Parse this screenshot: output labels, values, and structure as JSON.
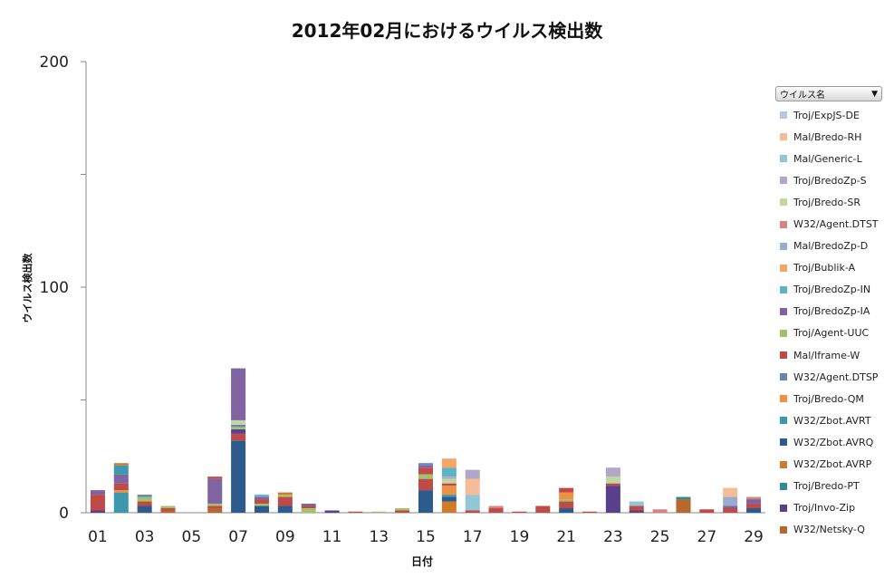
{
  "chart_data": {
    "type": "bar",
    "stacked": true,
    "title": "2012年02月におけるウイルス検出数",
    "xlabel": "日付",
    "ylabel": "ウイルス検出数",
    "ylim": [
      0,
      200
    ],
    "y_ticks": [
      "0",
      "100",
      "200"
    ],
    "x_tick_labels": [
      "01",
      "03",
      "05",
      "07",
      "09",
      "11",
      "13",
      "15",
      "17",
      "19",
      "21",
      "23",
      "25",
      "27",
      "29"
    ],
    "legend_header": "ウイルス名",
    "legend_arrow": "▼",
    "categories": [
      "01",
      "02",
      "03",
      "04",
      "05",
      "06",
      "07",
      "08",
      "09",
      "10",
      "11",
      "12",
      "13",
      "14",
      "15",
      "16",
      "17",
      "18",
      "19",
      "20",
      "21",
      "22",
      "23",
      "24",
      "25",
      "26",
      "27",
      "28",
      "29"
    ],
    "series": [
      {
        "name": "W32/Netsky-Q",
        "color": "#b8682d",
        "values": [
          0,
          0,
          0,
          0,
          0,
          0,
          0,
          0,
          0,
          0,
          0,
          0,
          0,
          0,
          0,
          0,
          0,
          0,
          0,
          0,
          0,
          0,
          0,
          0,
          0,
          6,
          0,
          0,
          0
        ]
      },
      {
        "name": "Troj/Invo-Zip",
        "color": "#5a3f8c",
        "values": [
          1,
          0,
          0,
          0,
          0,
          0,
          0,
          0,
          0,
          0,
          0,
          0,
          0,
          0,
          0,
          0,
          0,
          0,
          0,
          0,
          0,
          0,
          12,
          0,
          0,
          0,
          0,
          0,
          0
        ]
      },
      {
        "name": "Troj/Bredo-PT",
        "color": "#2f8a99",
        "values": [
          0,
          0,
          0,
          0,
          0,
          0,
          0,
          0,
          0,
          0,
          0,
          0,
          0,
          0,
          0,
          0,
          0,
          0,
          0,
          0,
          0,
          0,
          0,
          0,
          0,
          1,
          0,
          0,
          0
        ]
      },
      {
        "name": "W32/Zbot.AVRP",
        "color": "#d07a2c",
        "values": [
          0,
          0,
          0,
          0,
          0,
          0,
          0,
          0,
          0,
          0,
          0,
          0,
          0,
          0,
          0,
          5,
          0,
          0,
          0,
          0,
          0,
          0,
          0,
          0,
          0,
          0,
          0,
          0,
          0
        ]
      },
      {
        "name": "W32/Zbot.AVRQ",
        "color": "#2e5b8e",
        "values": [
          0,
          0,
          3,
          0,
          0,
          0,
          32,
          3,
          3,
          0,
          0,
          0,
          0,
          0,
          10,
          2,
          0,
          0,
          0,
          0,
          2,
          0,
          0,
          0,
          0,
          0,
          0,
          0,
          2
        ]
      },
      {
        "name": "W32/Zbot.AVRT",
        "color": "#3d98ae",
        "values": [
          0,
          9,
          0,
          0,
          0,
          0,
          0,
          0,
          0,
          0,
          0,
          0,
          0,
          0,
          0,
          1,
          0,
          0,
          0,
          0,
          0,
          0,
          0,
          0,
          0,
          0,
          0,
          0,
          0
        ]
      },
      {
        "name": "Troj/Bredo-QM",
        "color": "#ef9144",
        "values": [
          0,
          1,
          0,
          0,
          0,
          0,
          0,
          0,
          0,
          0,
          0,
          0,
          0,
          0,
          0,
          4,
          0,
          0,
          0,
          0,
          0,
          0,
          0,
          0,
          0,
          0,
          0,
          0,
          0
        ]
      },
      {
        "name": "W32/Agent.DTSP",
        "color": "#6b82b8",
        "values": [
          0,
          0,
          0,
          0,
          0,
          0,
          0,
          0,
          0,
          0,
          0,
          0,
          0,
          0,
          0,
          0,
          0,
          0,
          0,
          0,
          0,
          0,
          0,
          0,
          0,
          0,
          0,
          0,
          0
        ]
      },
      {
        "name": "Mal/Iframe-W",
        "color": "#bf4b49",
        "values": [
          0,
          0,
          0,
          0,
          0,
          0,
          0,
          0,
          0,
          0,
          0,
          0,
          0,
          0,
          0,
          0,
          0,
          0,
          0,
          0,
          0,
          0,
          0,
          0,
          0,
          0,
          0,
          0,
          0
        ]
      },
      {
        "name": "Troj/Agent-UUC",
        "color": "#a2c26a",
        "values": [
          0,
          0,
          0,
          0,
          0,
          0,
          0,
          0,
          0,
          0,
          0,
          0,
          0,
          0,
          0,
          0,
          0,
          0,
          0,
          0,
          0,
          0,
          0,
          0,
          0,
          0,
          0,
          0,
          0
        ]
      },
      {
        "name": "Troj/BredoZp-IA",
        "color": "#8064a2",
        "values": [
          0,
          0,
          0,
          0,
          0,
          0,
          0,
          0,
          0,
          0,
          0,
          0,
          0,
          0,
          0,
          0,
          0,
          0,
          0,
          0,
          0,
          0,
          0,
          0,
          0,
          0,
          0,
          0,
          0
        ]
      },
      {
        "name": "Troj/BredoZp-IN",
        "color": "#5fb3c8",
        "values": [
          0,
          0,
          0,
          0,
          0,
          0,
          0,
          0,
          0,
          0,
          0,
          0,
          0,
          0,
          0,
          0,
          0,
          0,
          0,
          0,
          0,
          0,
          0,
          0,
          0,
          0,
          0,
          0,
          0
        ]
      },
      {
        "name": "Troj/Bublik-A",
        "color": "#f5a767",
        "values": [
          0,
          0,
          0,
          0,
          0,
          0,
          0,
          0,
          0,
          0,
          0,
          0,
          0,
          0,
          0,
          0,
          0,
          0,
          0,
          0,
          0,
          0,
          0,
          0,
          0,
          0,
          0,
          0,
          0
        ]
      },
      {
        "name": "Mal/BredoZp-D",
        "color": "#99accd",
        "values": [
          0,
          0,
          0,
          0,
          0,
          0,
          0,
          0,
          0,
          0,
          0,
          0,
          0,
          0,
          0,
          0,
          0,
          0,
          0,
          0,
          0,
          0,
          0,
          0,
          0,
          0,
          0,
          0,
          0
        ]
      },
      {
        "name": "W32/Agent.DTST",
        "color": "#d48583",
        "values": [
          0,
          0,
          0,
          0,
          0,
          0,
          0,
          0,
          0,
          0,
          0,
          0,
          0,
          0,
          0,
          0,
          0,
          0,
          0,
          0,
          0,
          0,
          0,
          0,
          0,
          0,
          0,
          0,
          0
        ]
      },
      {
        "name": "Troj/Bredo-SR",
        "color": "#c1d7a0",
        "values": [
          0,
          0,
          0,
          0,
          0,
          0,
          0,
          0,
          0,
          0,
          0,
          0,
          0,
          0,
          0,
          0,
          0,
          0,
          0,
          0,
          0,
          0,
          0,
          0,
          0,
          0,
          0,
          0,
          0
        ]
      },
      {
        "name": "Troj/BredoZp-S",
        "color": "#b3a6c8",
        "values": [
          0,
          0,
          0,
          0,
          0,
          0,
          0,
          0,
          0,
          0,
          0,
          0,
          0,
          0,
          0,
          0,
          0,
          0,
          0,
          0,
          0,
          0,
          0,
          0,
          0,
          0,
          0,
          0,
          0
        ]
      },
      {
        "name": "Mal/Generic-L",
        "color": "#93c6d6",
        "values": [
          0,
          0,
          0,
          0,
          0,
          0,
          0,
          0,
          0,
          0,
          0,
          0,
          0,
          0,
          0,
          0,
          0,
          0,
          0,
          0,
          0,
          0,
          0,
          0,
          0,
          0,
          0,
          0,
          0
        ]
      },
      {
        "name": "Mal/Bredo-RH",
        "color": "#f6bc98",
        "values": [
          0,
          0,
          0,
          0,
          0,
          0,
          0,
          0,
          0,
          0,
          0,
          0,
          0,
          0,
          0,
          0,
          0,
          0,
          0,
          0,
          0,
          0,
          0,
          0,
          0,
          0,
          0,
          0,
          0
        ]
      },
      {
        "name": "Troj/ExpJS-DE",
        "color": "#b9c6e2",
        "values": [
          0,
          0,
          0,
          0,
          0,
          0,
          0,
          0,
          0,
          0,
          0,
          0,
          0,
          0,
          0,
          0,
          0,
          0,
          0,
          0,
          0,
          0,
          0,
          0,
          0,
          0,
          0,
          0,
          0
        ]
      }
    ],
    "extra_segments": [
      {
        "day": "01",
        "stack": [
          [
            "#bf4b49",
            7
          ],
          [
            "#8064a2",
            2
          ]
        ]
      },
      {
        "day": "02",
        "stack": [
          [
            "#bf4b49",
            3
          ],
          [
            "#8064a2",
            4
          ],
          [
            "#3d98ae",
            4
          ],
          [
            "#d07a2c",
            1
          ]
        ]
      },
      {
        "day": "03",
        "stack": [
          [
            "#bf4b49",
            2
          ],
          [
            "#a2c26a",
            2
          ],
          [
            "#6b82b8",
            1
          ]
        ]
      },
      {
        "day": "04",
        "stack": [
          [
            "#b8682d",
            1
          ],
          [
            "#bf4b49",
            1
          ],
          [
            "#a2c26a",
            1
          ]
        ]
      },
      {
        "day": "06",
        "stack": [
          [
            "#b8682d",
            2
          ],
          [
            "#bf4b49",
            1
          ],
          [
            "#a2c26a",
            1
          ],
          [
            "#8064a2",
            11
          ],
          [
            "#bf4b49",
            1
          ]
        ]
      },
      {
        "day": "07",
        "stack": [
          [
            "#bf4b49",
            3
          ],
          [
            "#5a3f8c",
            2
          ],
          [
            "#a2c26a",
            1
          ],
          [
            "#6b82b8",
            1
          ],
          [
            "#c1d7a0",
            2
          ],
          [
            "#8064a2",
            23
          ]
        ]
      },
      {
        "day": "08",
        "stack": [
          [
            "#a2c26a",
            1
          ],
          [
            "#bf4b49",
            2
          ],
          [
            "#8064a2",
            1
          ],
          [
            "#5fb3c8",
            1
          ]
        ]
      },
      {
        "day": "09",
        "stack": [
          [
            "#bf4b49",
            4
          ],
          [
            "#a2c26a",
            1
          ],
          [
            "#d07a2c",
            1
          ]
        ]
      },
      {
        "day": "10",
        "stack": [
          [
            "#a2c26a",
            2
          ],
          [
            "#bf4b49",
            1
          ],
          [
            "#8064a2",
            1
          ]
        ]
      },
      {
        "day": "11",
        "stack": [
          [
            "#5a3f8c",
            1
          ]
        ]
      },
      {
        "day": "12",
        "stack": [
          [
            "#bf4b49",
            0.5
          ]
        ]
      },
      {
        "day": "13",
        "stack": [
          [
            "#a2c26a",
            0.5
          ]
        ]
      },
      {
        "day": "14",
        "stack": [
          [
            "#bf4b49",
            1
          ],
          [
            "#a2c26a",
            1
          ]
        ]
      },
      {
        "day": "15",
        "stack": [
          [
            "#bf4b49",
            5
          ],
          [
            "#a2c26a",
            2
          ],
          [
            "#bf4b49",
            3
          ],
          [
            "#8064a2",
            1
          ],
          [
            "#6b82b8",
            1
          ]
        ]
      },
      {
        "day": "16",
        "stack": [
          [
            "#bf4b49",
            1
          ],
          [
            "#c1d7a0",
            2
          ],
          [
            "#b3a6c8",
            1
          ],
          [
            "#5fb3c8",
            4
          ],
          [
            "#f5a767",
            4
          ]
        ]
      },
      {
        "day": "17",
        "stack": [
          [
            "#bf4b49",
            1
          ],
          [
            "#93c6d6",
            7
          ],
          [
            "#f6bc98",
            7
          ],
          [
            "#b3a6c8",
            4
          ]
        ]
      },
      {
        "day": "18",
        "stack": [
          [
            "#bf4b49",
            2
          ],
          [
            "#d48583",
            1
          ]
        ]
      },
      {
        "day": "19",
        "stack": [
          [
            "#bf4b49",
            0.5
          ]
        ]
      },
      {
        "day": "20",
        "stack": [
          [
            "#bf4b49",
            3
          ]
        ]
      },
      {
        "day": "21",
        "stack": [
          [
            "#bf4b49",
            3
          ],
          [
            "#a2c26a",
            1
          ],
          [
            "#ef9144",
            3
          ],
          [
            "#bf4b49",
            2
          ]
        ]
      },
      {
        "day": "22",
        "stack": [
          [
            "#bf4b49",
            0.5
          ]
        ]
      },
      {
        "day": "23",
        "stack": [
          [
            "#bf4b49",
            1
          ],
          [
            "#c1d7a0",
            3
          ],
          [
            "#b3a6c8",
            4
          ]
        ]
      },
      {
        "day": "24",
        "stack": [
          [
            "#5a3f8c",
            1
          ],
          [
            "#bf4b49",
            2
          ],
          [
            "#93c6d6",
            2
          ]
        ]
      },
      {
        "day": "25",
        "stack": [
          [
            "#d48583",
            1.5
          ]
        ]
      },
      {
        "day": "27",
        "stack": [
          [
            "#bf4b49",
            1.5
          ]
        ]
      },
      {
        "day": "28",
        "stack": [
          [
            "#bf4b49",
            2
          ],
          [
            "#8064a2",
            1
          ],
          [
            "#99accd",
            4
          ],
          [
            "#f6bc98",
            4
          ]
        ]
      },
      {
        "day": "29",
        "stack": [
          [
            "#bf4b49",
            2
          ],
          [
            "#8064a2",
            2
          ],
          [
            "#d48583",
            1
          ]
        ]
      }
    ]
  }
}
